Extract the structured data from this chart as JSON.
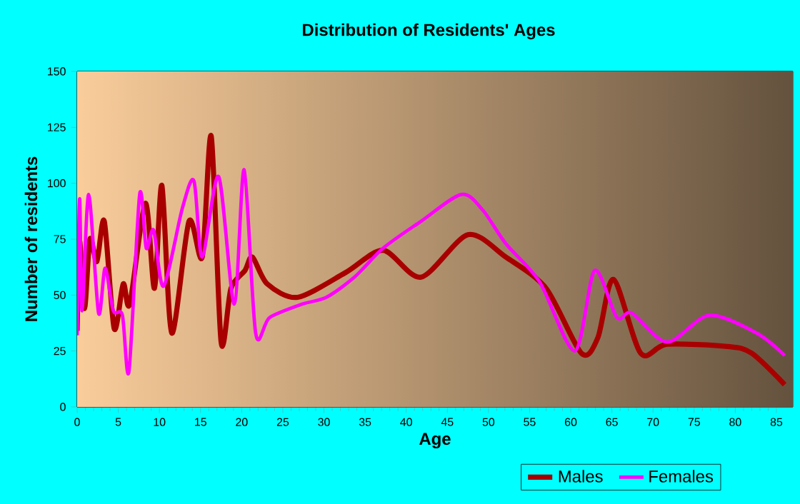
{
  "chart_data": {
    "type": "line",
    "title": "Distribution of Residents' Ages",
    "xlabel": "Age",
    "ylabel": "Number of residents",
    "xlim": [
      0,
      87
    ],
    "xticks": [
      0,
      5,
      10,
      15,
      20,
      25,
      30,
      35,
      40,
      45,
      50,
      55,
      60,
      65,
      70,
      75,
      80,
      85
    ],
    "ylim": [
      0,
      150
    ],
    "yticks": [
      0,
      25,
      50,
      75,
      100,
      125,
      150
    ],
    "grid": true,
    "legend": "bottom right",
    "marker": "none",
    "line_style": "solid",
    "series": [
      {
        "name": "Males",
        "color": "#a80000",
        "x": [
          0,
          0.3,
          0.9,
          1.55,
          2.4,
          3.3,
          4.5,
          5.6,
          6.4,
          8.3,
          9.4,
          10.3,
          11.5,
          13.6,
          15.2,
          16.3,
          17.5,
          18.7,
          20.4,
          21.3,
          23.1,
          26.8,
          32.6,
          37.2,
          41.8,
          47.5,
          52.1,
          57,
          61.3,
          63.3,
          65.2,
          68.5,
          71.7,
          79.1,
          82,
          86
        ],
        "values": [
          34,
          74,
          44,
          75,
          65,
          83,
          35,
          55,
          46,
          91,
          53,
          99,
          33,
          83,
          67,
          121,
          29,
          53,
          61,
          67,
          55,
          49,
          60,
          70,
          58,
          77,
          67,
          53,
          24,
          31,
          57,
          24,
          28,
          27,
          24,
          10
        ]
      },
      {
        "name": "Females",
        "color": "#ff00ff",
        "x": [
          0,
          0.3,
          0.6,
          1.4,
          2.6,
          3.4,
          4.4,
          5.5,
          6.3,
          7.6,
          8.4,
          9.3,
          10.5,
          12.8,
          14.2,
          15.2,
          17.2,
          19.1,
          20.3,
          21.7,
          23.4,
          27.4,
          30.3,
          33.7,
          37.2,
          41.8,
          46.7,
          49.3,
          52.1,
          56.2,
          60.5,
          62.9,
          65.6,
          67.4,
          71.7,
          76.8,
          82.6,
          86
        ],
        "values": [
          32,
          93,
          43,
          95,
          42,
          62,
          43,
          41,
          16,
          95,
          71,
          79,
          54,
          89,
          101,
          67,
          103,
          46,
          106,
          33,
          40,
          46,
          49,
          58,
          71,
          83,
          95,
          88,
          73,
          56,
          25,
          61,
          40,
          42,
          29,
          41,
          33,
          23
        ]
      }
    ]
  }
}
